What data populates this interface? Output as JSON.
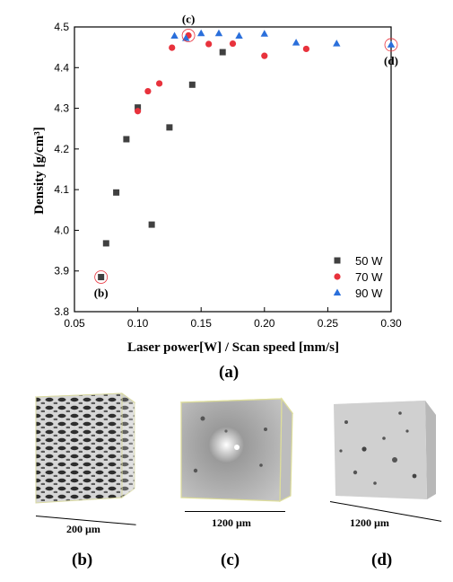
{
  "chart_data": {
    "type": "scatter",
    "xlabel": "Laser power[W] / Scan speed [mm/s]",
    "ylabel": "Density [g/cm³]",
    "xlim": [
      0.05,
      0.3
    ],
    "ylim": [
      3.8,
      4.5
    ],
    "xticks": [
      "0.05",
      "0.10",
      "0.15",
      "0.20",
      "0.25",
      "0.30"
    ],
    "yticks": [
      "3.8",
      "3.9",
      "4.0",
      "4.1",
      "4.2",
      "4.3",
      "4.4",
      "4.5"
    ],
    "legend_position": "bottom-right",
    "series": [
      {
        "name": "50 W",
        "marker": "square",
        "color": "#404040",
        "x": [
          0.071,
          0.075,
          0.083,
          0.091,
          0.1,
          0.111,
          0.125,
          0.143,
          0.167
        ],
        "y": [
          3.885,
          3.968,
          4.093,
          4.224,
          4.302,
          4.014,
          4.253,
          4.358,
          4.438
        ]
      },
      {
        "name": "70 W",
        "marker": "circle",
        "color": "#e8323c",
        "x": [
          0.1,
          0.108,
          0.117,
          0.127,
          0.14,
          0.156,
          0.175,
          0.2,
          0.233
        ],
        "y": [
          4.293,
          4.342,
          4.361,
          4.449,
          4.479,
          4.458,
          4.459,
          4.429,
          4.446
        ]
      },
      {
        "name": "90 W",
        "marker": "triangle",
        "color": "#2a6fdb",
        "x": [
          0.129,
          0.138,
          0.15,
          0.164,
          0.18,
          0.2,
          0.225,
          0.257,
          0.3
        ],
        "y": [
          4.478,
          4.472,
          4.484,
          4.484,
          4.478,
          4.483,
          4.461,
          4.459,
          4.456
        ]
      }
    ],
    "annotations": [
      {
        "label": "(b)",
        "x": 0.071,
        "y": 3.885,
        "circled": true
      },
      {
        "label": "(c)",
        "x": 0.14,
        "y": 4.479,
        "circled": true
      },
      {
        "label": "(d)",
        "x": 0.3,
        "y": 4.456,
        "circled": true
      }
    ]
  },
  "figure": {
    "caption_a": "(a)",
    "panels": [
      {
        "letter": "(b)",
        "scale": "200 µm"
      },
      {
        "letter": "(c)",
        "scale": "1200 µm"
      },
      {
        "letter": "(d)",
        "scale": "1200 µm"
      }
    ]
  }
}
